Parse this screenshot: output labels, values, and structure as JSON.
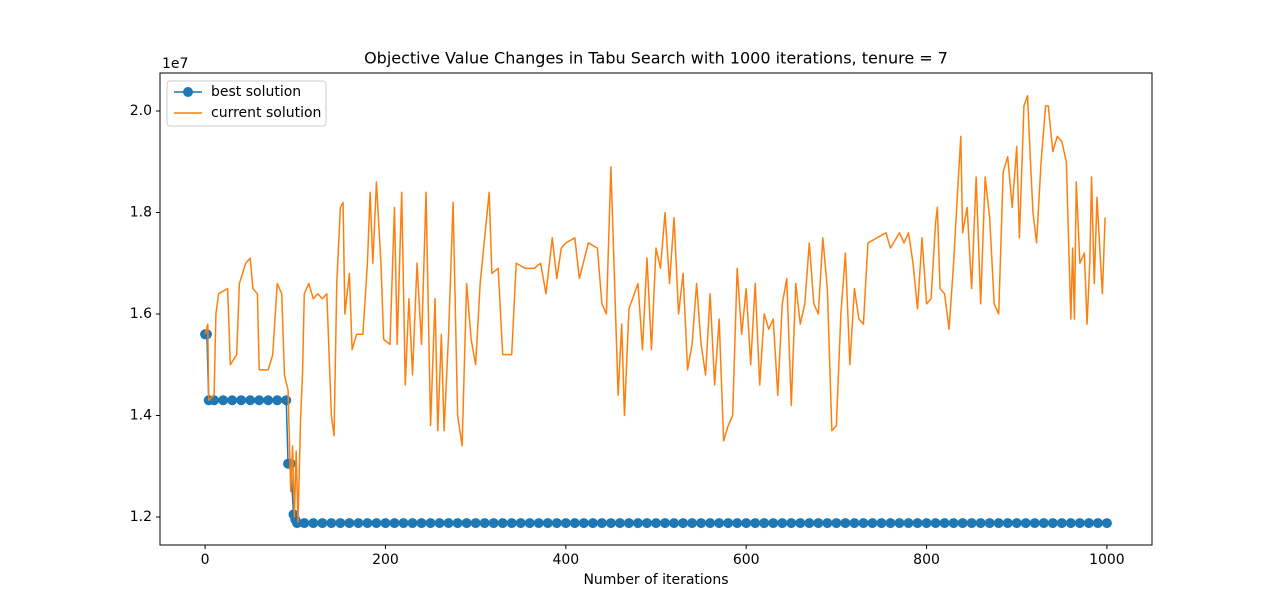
{
  "chart_data": {
    "type": "line",
    "title": "Objective Value Changes in Tabu Search with 1000 iterations, tenure = 7",
    "xlabel": "Number of iterations",
    "y_offset_label": "1e7",
    "xlim": [
      -50,
      1050
    ],
    "ylim": [
      11448000,
      20749000
    ],
    "xticks": [
      0,
      200,
      400,
      600,
      800,
      1000
    ],
    "yticks": [
      {
        "value": 12000000,
        "label": "1.2"
      },
      {
        "value": 14000000,
        "label": "1.4"
      },
      {
        "value": 16000000,
        "label": "1.6"
      },
      {
        "value": 18000000,
        "label": "1.8"
      },
      {
        "value": 20000000,
        "label": "2.0"
      }
    ],
    "legend": "upper left",
    "series": [
      {
        "name": "best solution",
        "color": "#1f77b4",
        "marker": true,
        "x": [
          0,
          2,
          4,
          10,
          20,
          30,
          40,
          50,
          60,
          70,
          80,
          90,
          92,
          95,
          98,
          100,
          102,
          110,
          120,
          130,
          140,
          150,
          160,
          170,
          180,
          190,
          200,
          210,
          220,
          230,
          240,
          250,
          260,
          270,
          280,
          290,
          300,
          310,
          320,
          330,
          340,
          350,
          360,
          370,
          380,
          390,
          400,
          410,
          420,
          430,
          440,
          450,
          460,
          470,
          480,
          490,
          500,
          510,
          520,
          530,
          540,
          550,
          560,
          570,
          580,
          590,
          600,
          610,
          620,
          630,
          640,
          650,
          660,
          670,
          680,
          690,
          700,
          710,
          720,
          730,
          740,
          750,
          760,
          770,
          780,
          790,
          800,
          810,
          820,
          830,
          840,
          850,
          860,
          870,
          880,
          890,
          900,
          910,
          920,
          930,
          940,
          950,
          960,
          970,
          980,
          990,
          1000
        ],
        "values": [
          15600000.0,
          15600000.0,
          14300000.0,
          14300000.0,
          14300000.0,
          14300000.0,
          14300000.0,
          14300000.0,
          14300000.0,
          14300000.0,
          14300000.0,
          14300000.0,
          13050000.0,
          13050000.0,
          12050000.0,
          11950000.0,
          11880000.0,
          11880000.0,
          11880000.0,
          11880000.0,
          11880000.0,
          11880000.0,
          11880000.0,
          11880000.0,
          11880000.0,
          11880000.0,
          11880000.0,
          11880000.0,
          11880000.0,
          11880000.0,
          11880000.0,
          11880000.0,
          11880000.0,
          11880000.0,
          11880000.0,
          11880000.0,
          11880000.0,
          11880000.0,
          11880000.0,
          11880000.0,
          11880000.0,
          11880000.0,
          11880000.0,
          11880000.0,
          11880000.0,
          11880000.0,
          11880000.0,
          11880000.0,
          11880000.0,
          11880000.0,
          11880000.0,
          11880000.0,
          11880000.0,
          11880000.0,
          11880000.0,
          11880000.0,
          11880000.0,
          11880000.0,
          11880000.0,
          11880000.0,
          11880000.0,
          11880000.0,
          11880000.0,
          11880000.0,
          11880000.0,
          11880000.0,
          11880000.0,
          11880000.0,
          11880000.0,
          11880000.0,
          11880000.0,
          11880000.0,
          11880000.0,
          11880000.0,
          11880000.0,
          11880000.0,
          11880000.0,
          11880000.0,
          11880000.0,
          11880000.0,
          11880000.0,
          11880000.0,
          11880000.0,
          11880000.0,
          11880000.0,
          11880000.0,
          11880000.0,
          11880000.0,
          11880000.0,
          11880000.0,
          11880000.0,
          11880000.0,
          11880000.0,
          11880000.0,
          11880000.0,
          11880000.0,
          11880000.0,
          11880000.0,
          11880000.0,
          11880000.0,
          11880000.0,
          11880000.0,
          11880000.0,
          11880000.0,
          11880000.0,
          11880000.0,
          11880000.0
        ]
      },
      {
        "name": "current solution",
        "color": "#ff7f0e",
        "marker": false,
        "x": [
          0,
          3,
          4,
          10,
          12,
          15,
          25,
          28,
          35,
          38,
          45,
          50,
          53,
          58,
          60,
          70,
          75,
          80,
          85,
          88,
          92,
          95,
          97,
          99,
          101,
          103,
          106,
          108,
          110,
          115,
          120,
          125,
          130,
          135,
          140,
          143,
          146,
          150,
          153,
          155,
          160,
          163,
          168,
          175,
          180,
          183,
          186,
          190,
          195,
          198,
          205,
          210,
          213,
          218,
          222,
          226,
          230,
          235,
          240,
          245,
          250,
          255,
          258,
          262,
          265,
          270,
          275,
          280,
          285,
          290,
          295,
          300,
          305,
          315,
          318,
          325,
          330,
          340,
          345,
          355,
          365,
          372,
          378,
          385,
          390,
          395,
          400,
          410,
          415,
          425,
          435,
          440,
          445,
          450,
          455,
          458,
          462,
          465,
          470,
          480,
          485,
          490,
          495,
          500,
          505,
          510,
          515,
          520,
          525,
          530,
          535,
          540,
          545,
          550,
          555,
          560,
          565,
          570,
          575,
          580,
          585,
          590,
          595,
          600,
          605,
          610,
          615,
          620,
          625,
          630,
          635,
          640,
          645,
          650,
          655,
          660,
          665,
          670,
          675,
          680,
          685,
          690,
          695,
          700,
          705,
          710,
          715,
          720,
          725,
          730,
          735,
          745,
          755,
          760,
          770,
          775,
          780,
          785,
          790,
          795,
          800,
          805,
          810,
          812,
          815,
          820,
          825,
          830,
          835,
          838,
          840,
          845,
          850,
          855,
          860,
          865,
          870,
          875,
          880,
          885,
          890,
          895,
          900,
          903,
          908,
          912,
          915,
          918,
          922,
          927,
          932,
          935,
          940,
          945,
          950,
          955,
          960,
          962,
          964,
          966,
          970,
          975,
          978,
          981,
          983,
          986,
          989,
          993,
          995,
          998
        ],
        "values": [
          15600000.0,
          15800000.0,
          14300000.0,
          14400000.0,
          16000000.0,
          16400000.0,
          16500000.0,
          15000000.0,
          15200000.0,
          16600000.0,
          17000000.0,
          17100000.0,
          16500000.0,
          16400000.0,
          14900000.0,
          14900000.0,
          15200000.0,
          16600000.0,
          16400000.0,
          14800000.0,
          14500000.0,
          12500000.0,
          13400000.0,
          12000000.0,
          13300000.0,
          11900000.0,
          14000000.0,
          14800000.0,
          16400000.0,
          16600000.0,
          16300000.0,
          16400000.0,
          16300000.0,
          16400000.0,
          14000000.0,
          13600000.0,
          16600000.0,
          18100000.0,
          18200000.0,
          16000000.0,
          16800000.0,
          15300000.0,
          15600000.0,
          15600000.0,
          17000000.0,
          18400000.0,
          17000000.0,
          18600000.0,
          17000000.0,
          15500000.0,
          15400000.0,
          18100000.0,
          15400000.0,
          18400000.0,
          14600000.0,
          16300000.0,
          14800000.0,
          17000000.0,
          15400000.0,
          18400000.0,
          13800000.0,
          16300000.0,
          13700000.0,
          15600000.0,
          13700000.0,
          15600000.0,
          18200000.0,
          14000000.0,
          13400000.0,
          16600000.0,
          15500000.0,
          15000000.0,
          16600000.0,
          18400000.0,
          16800000.0,
          16900000.0,
          15200000.0,
          15200000.0,
          17000000.0,
          16900000.0,
          16900000.0,
          17000000.0,
          16400000.0,
          17500000.0,
          16700000.0,
          17300000.0,
          17400000.0,
          17500000.0,
          16700000.0,
          17400000.0,
          17300000.0,
          16200000.0,
          16000000.0,
          18900000.0,
          16100000.0,
          14400000.0,
          15800000.0,
          14000000.0,
          16100000.0,
          16600000.0,
          15300000.0,
          17100000.0,
          15300000.0,
          17300000.0,
          16900000.0,
          18000000.0,
          16600000.0,
          17900000.0,
          16000000.0,
          16800000.0,
          14900000.0,
          15400000.0,
          16600000.0,
          15400000.0,
          14800000.0,
          16400000.0,
          14600000.0,
          15900000.0,
          13500000.0,
          13800000.0,
          14000000.0,
          16900000.0,
          15600000.0,
          16500000.0,
          15000000.0,
          16600000.0,
          14600000.0,
          16000000.0,
          15700000.0,
          15900000.0,
          14400000.0,
          16200000.0,
          16700000.0,
          14200000.0,
          16600000.0,
          15800000.0,
          16200000.0,
          17400000.0,
          16200000.0,
          16000000.0,
          17500000.0,
          16500000.0,
          13700000.0,
          13800000.0,
          16000000.0,
          17200000.0,
          15000000.0,
          16500000.0,
          15900000.0,
          15800000.0,
          17400000.0,
          17500000.0,
          17600000.0,
          17300000.0,
          17600000.0,
          17400000.0,
          17600000.0,
          17000000.0,
          16100000.0,
          17500000.0,
          16200000.0,
          16300000.0,
          17800000.0,
          18100000.0,
          16500000.0,
          16400000.0,
          15700000.0,
          17000000.0,
          18600000.0,
          19500000.0,
          17600000.0,
          18100000.0,
          16500000.0,
          18700000.0,
          16200000.0,
          18700000.0,
          17900000.0,
          16200000.0,
          16000000.0,
          18800000.0,
          19100000.0,
          18100000.0,
          19300000.0,
          17500000.0,
          20100000.0,
          20300000.0,
          19100000.0,
          18000000.0,
          17400000.0,
          19000000.0,
          20100000.0,
          20100000.0,
          19200000.0,
          19500000.0,
          19400000.0,
          19000000.0,
          15900000.0,
          17300000.0,
          15900000.0,
          18600000.0,
          17000000.0,
          17200000.0,
          15800000.0,
          17000000.0,
          18700000.0,
          16600000.0,
          18300000.0,
          17000000.0,
          16400000.0,
          17900000.0
        ]
      }
    ]
  }
}
